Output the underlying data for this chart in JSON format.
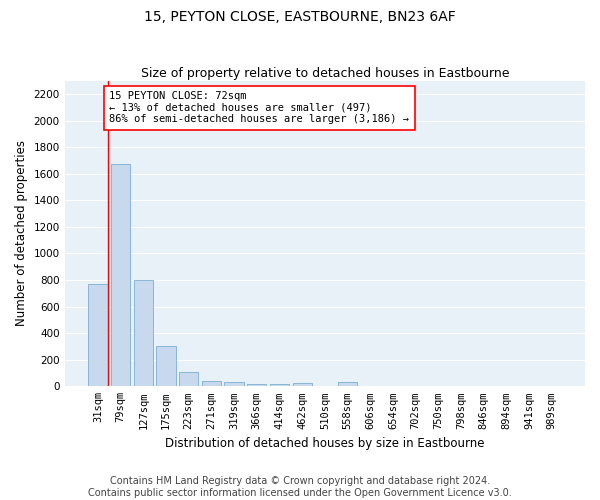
{
  "title": "15, PEYTON CLOSE, EASTBOURNE, BN23 6AF",
  "subtitle": "Size of property relative to detached houses in Eastbourne",
  "xlabel": "Distribution of detached houses by size in Eastbourne",
  "ylabel": "Number of detached properties",
  "bar_labels": [
    "31sqm",
    "79sqm",
    "127sqm",
    "175sqm",
    "223sqm",
    "271sqm",
    "319sqm",
    "366sqm",
    "414sqm",
    "462sqm",
    "510sqm",
    "558sqm",
    "606sqm",
    "654sqm",
    "702sqm",
    "750sqm",
    "798sqm",
    "846sqm",
    "894sqm",
    "941sqm",
    "989sqm"
  ],
  "bar_values": [
    770,
    1670,
    800,
    300,
    110,
    40,
    30,
    20,
    15,
    25,
    0,
    30,
    0,
    0,
    0,
    0,
    0,
    0,
    0,
    0,
    0
  ],
  "bar_color": "#c9d9ed",
  "bar_edge_color": "#7bafd4",
  "background_color": "#e8f0f8",
  "grid_color": "#ffffff",
  "annotation_line1": "15 PEYTON CLOSE: 72sqm",
  "annotation_line2": "← 13% of detached houses are smaller (497)",
  "annotation_line3": "86% of semi-detached houses are larger (3,186) →",
  "ylim": [
    0,
    2300
  ],
  "yticks": [
    0,
    200,
    400,
    600,
    800,
    1000,
    1200,
    1400,
    1600,
    1800,
    2000,
    2200
  ],
  "footer_line1": "Contains HM Land Registry data © Crown copyright and database right 2024.",
  "footer_line2": "Contains public sector information licensed under the Open Government Licence v3.0.",
  "title_fontsize": 10,
  "subtitle_fontsize": 9,
  "xlabel_fontsize": 8.5,
  "ylabel_fontsize": 8.5,
  "tick_fontsize": 7.5,
  "annotation_fontsize": 7.5,
  "footer_fontsize": 7
}
